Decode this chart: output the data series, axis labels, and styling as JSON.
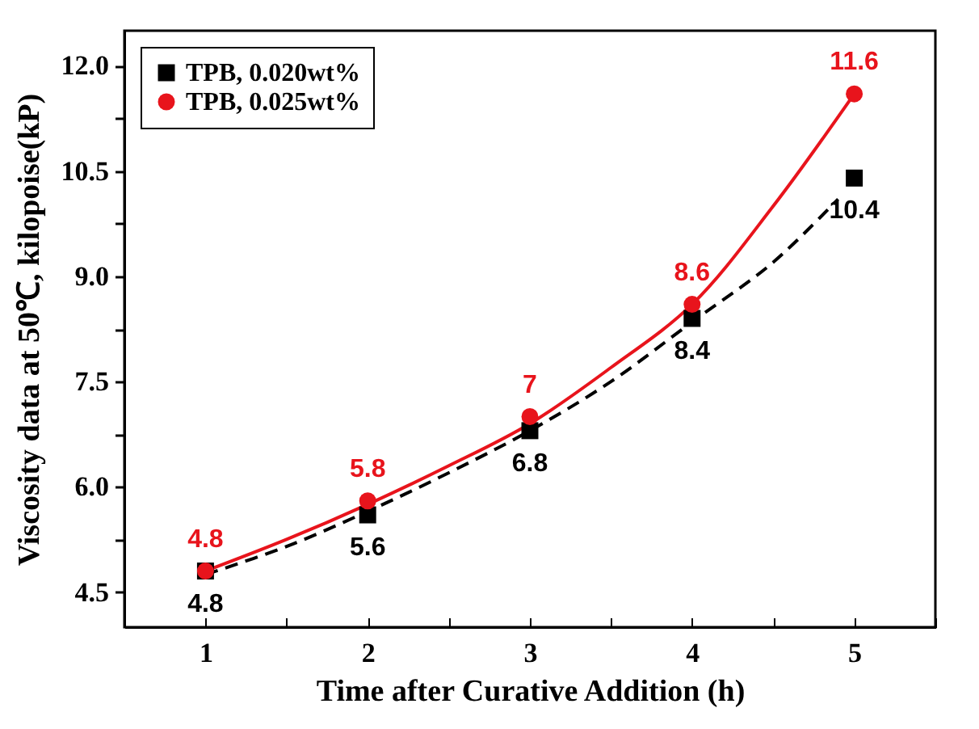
{
  "chart_data": {
    "type": "scatter",
    "xlabel": "Time after Curative Addition (h)",
    "ylabel": "Viscosity data at 50℃, kilopoise(kP)",
    "xlim": [
      0.5,
      5.5
    ],
    "xticks": [
      {
        "value": 0.5,
        "label": null
      },
      1,
      {
        "value": 1.5,
        "label": null
      },
      2,
      {
        "value": 2.5,
        "label": null
      },
      3,
      {
        "value": 3.5,
        "label": null
      },
      4,
      {
        "value": 4.5,
        "label": null
      },
      5,
      {
        "value": 5.5,
        "label": null
      }
    ],
    "ylim": [
      4.0,
      12.5
    ],
    "yticks": [
      4.5,
      {
        "value": 5.25,
        "label": null
      },
      {
        "value": 6,
        "label": "6.0"
      },
      {
        "value": 6.75,
        "label": null
      },
      7.5,
      {
        "value": 8.25,
        "label": null
      },
      {
        "value": 9,
        "label": "9.0"
      },
      {
        "value": 9.75,
        "label": null
      },
      10.5,
      {
        "value": 11.25,
        "label": null
      },
      {
        "value": 12,
        "label": "12.0"
      }
    ],
    "legend": "top left",
    "grid": false,
    "series": [
      {
        "type": "line",
        "color": "#000000",
        "line_style": "dashed",
        "x": [
          1,
          1.5,
          2,
          2.5,
          3,
          3.5,
          4,
          4.5,
          4.9
        ],
        "values": [
          4.75,
          5.15,
          5.65,
          6.2,
          6.8,
          7.5,
          8.35,
          9.2,
          10.1
        ]
      },
      {
        "type": "line",
        "color": "#e8141c",
        "line_style": "solid",
        "x": [
          1,
          1.5,
          2,
          2.5,
          3,
          3.5,
          4,
          4.5,
          5
        ],
        "values": [
          4.8,
          5.25,
          5.75,
          6.3,
          6.9,
          7.7,
          8.6,
          10.0,
          11.6
        ]
      },
      {
        "name": "TPB, 0.020wt%",
        "color": "#000000",
        "marker": "square",
        "x": [
          1,
          2,
          3,
          4,
          5
        ],
        "values": [
          4.8,
          5.6,
          6.8,
          8.4,
          10.4
        ],
        "value_labels": [
          "4.8",
          "5.6",
          "6.8",
          "8.4",
          "10.4"
        ]
      },
      {
        "name": "TPB, 0.025wt%",
        "color": "#e8141c",
        "marker": "circle",
        "x": [
          1,
          2,
          3,
          4,
          5
        ],
        "values": [
          4.8,
          5.8,
          7,
          8.6,
          11.6
        ],
        "value_labels": [
          "4.8",
          "5.8",
          "7",
          "8.6",
          "11.6"
        ]
      }
    ]
  }
}
